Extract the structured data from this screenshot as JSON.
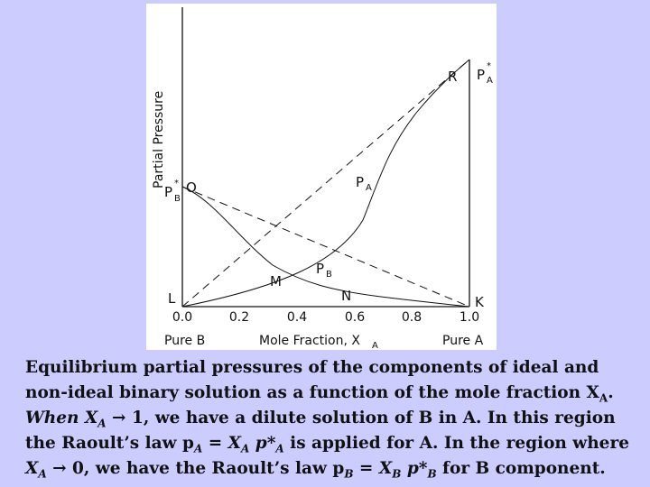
{
  "diagram": {
    "y_axis_title": "Partial Pressure",
    "x_axis_title": "Mole Fraction, X",
    "x_axis_title_sub": "A",
    "x_ticks": [
      "0.0",
      "0.2",
      "0.4",
      "0.6",
      "0.8",
      "1.0"
    ],
    "left_end_label": "Pure B",
    "right_end_label": "Pure A",
    "points": {
      "L": "L",
      "K": "K",
      "O": "O",
      "R": "R",
      "M": "M",
      "N": "N",
      "pa_star": "P",
      "pa_star_sub": "A",
      "pa_star_sup": "*",
      "pb_star": "P",
      "pb_star_sub": "B",
      "pb_star_sup": "*",
      "pa_curve": "P",
      "pa_curve_sub": "A",
      "pb_curve": "P",
      "pb_curve_sub": "B"
    }
  },
  "caption": {
    "l1": "Equilibrium partial pressures of the components of ideal and",
    "l2a": "non-ideal binary solution as a function of the mole fraction X",
    "l2sub": "A",
    "l2b": ".",
    "l3a": "When X",
    "l3sub": "A",
    "l3b": " → 1, we have a dilute solution of B in A. In this region",
    "l4a": "the Raoult’s law p",
    "l4sub1": "A",
    "l4b": " = X",
    "l4sub2": "A",
    "l4c": " p*",
    "l4sub3": "A",
    "l4d": " is applied for A. In the region where",
    "l5a": "X",
    "l5sub1": "A",
    "l5b": " → 0, we have the Raoult’s law p",
    "l5sub2": "B",
    "l5c": " = X",
    "l5sub3": "B",
    "l5d": " p*",
    "l5sub4": "B",
    "l5e": " for B component."
  }
}
